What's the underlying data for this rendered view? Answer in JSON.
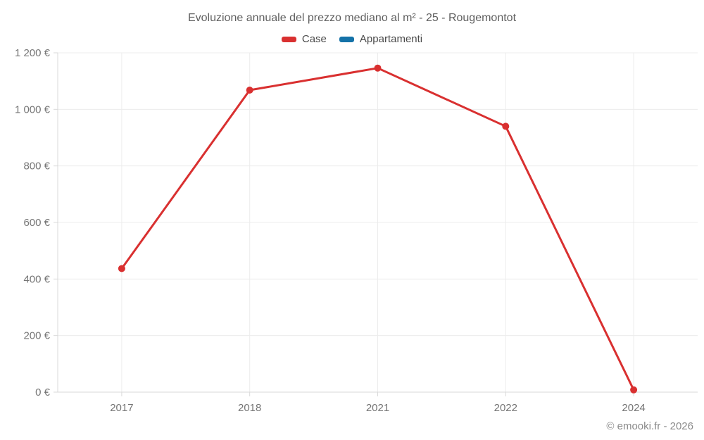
{
  "title": "Evoluzione annuale del prezzo mediano al m² - 25 - Rougemontot",
  "legend": {
    "items": [
      {
        "label": "Case",
        "color": "#d93030"
      },
      {
        "label": "Appartamenti",
        "color": "#1472a8"
      }
    ]
  },
  "footer": {
    "credit": "© emooki.fr - 2026"
  },
  "colors": {
    "case_series": "#d93030",
    "appartamenti_series": "#1472a8",
    "gridline": "#ececec",
    "axis_line": "#d9d9d9",
    "tick_label": "#757575"
  },
  "chart_data": {
    "type": "line",
    "title": "Evoluzione annuale del prezzo mediano al m² - 25 - Rougemontot",
    "categories": [
      "2017",
      "2018",
      "2021",
      "2022",
      "2024"
    ],
    "series": [
      {
        "name": "Case",
        "color": "#d93030",
        "values": [
          437,
          1068,
          1146,
          940,
          8
        ]
      },
      {
        "name": "Appartamenti",
        "color": "#1472a8",
        "values": []
      }
    ],
    "xlabel": "",
    "ylabel": "",
    "ylim": [
      0,
      1200
    ],
    "y_ticks": [
      {
        "value": 0,
        "label": "0 €"
      },
      {
        "value": 200,
        "label": "200 €"
      },
      {
        "value": 400,
        "label": "400 €"
      },
      {
        "value": 600,
        "label": "600 €"
      },
      {
        "value": 800,
        "label": "800 €"
      },
      {
        "value": 1000,
        "label": "1 000 €"
      },
      {
        "value": 1200,
        "label": "1 200 €"
      }
    ],
    "grid": true,
    "legend_position": "top"
  }
}
